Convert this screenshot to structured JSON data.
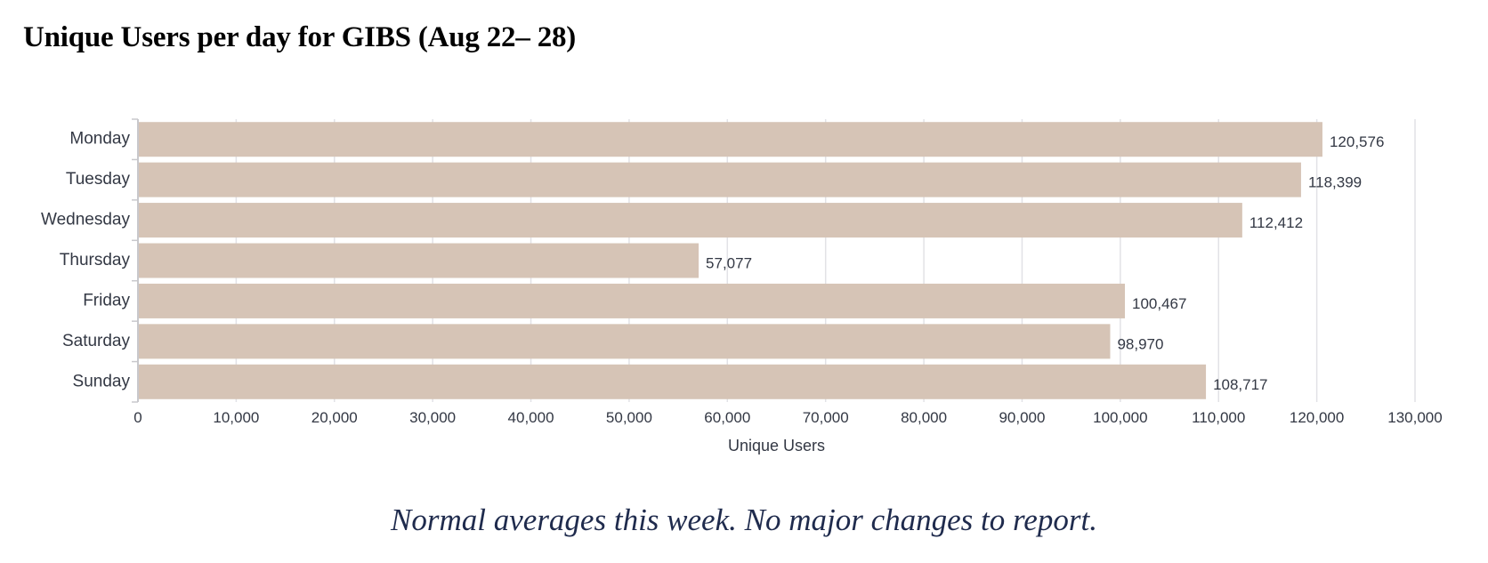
{
  "page": {
    "title": "Unique Users per day for GIBS (Aug 22– 28)",
    "note": "Normal averages this week.  No major changes to report."
  },
  "chart_data": {
    "type": "bar",
    "orientation": "horizontal",
    "title": "",
    "xlabel": "Unique Users",
    "ylabel": "",
    "categories": [
      "Monday",
      "Tuesday",
      "Wednesday",
      "Thursday",
      "Friday",
      "Saturday",
      "Sunday"
    ],
    "values": [
      120576,
      118399,
      112412,
      57077,
      100467,
      98970,
      108717
    ],
    "data_labels": [
      "120,576",
      "118,399",
      "112,412",
      "57,077",
      "100,467",
      "98,970",
      "108,717"
    ],
    "xlim": [
      0,
      130000
    ],
    "xticks": [
      0,
      10000,
      20000,
      30000,
      40000,
      50000,
      60000,
      70000,
      80000,
      90000,
      100000,
      110000,
      120000,
      130000
    ],
    "xtick_labels": [
      "0",
      "10,000",
      "20,000",
      "30,000",
      "40,000",
      "50,000",
      "60,000",
      "70,000",
      "80,000",
      "90,000",
      "100,000",
      "110,000",
      "120,000",
      "130,000"
    ],
    "grid": true,
    "legend": "none",
    "colors": {
      "bar": "#d6c4b6",
      "grid": "#e2e2e6",
      "axis": "#c8c8cc",
      "text": "#333844"
    }
  }
}
